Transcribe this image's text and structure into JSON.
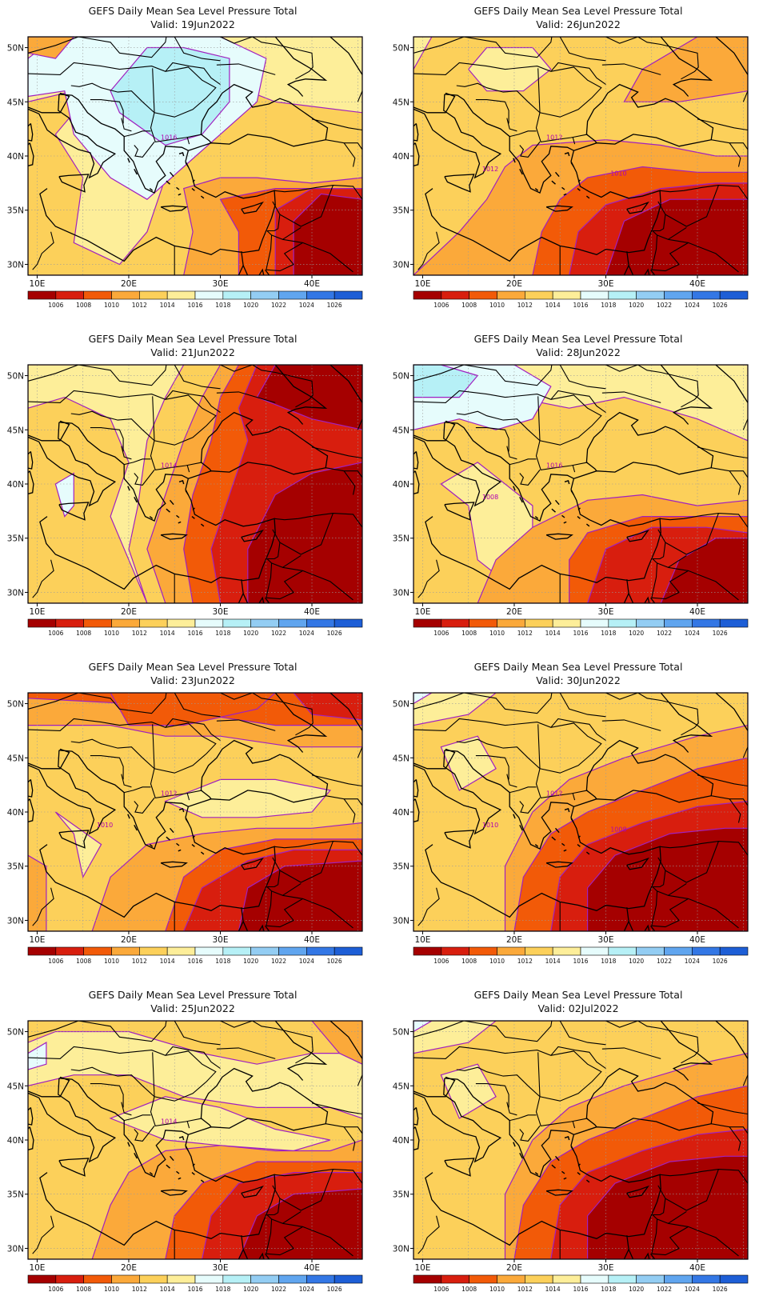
{
  "map_title": "GEFS Daily Mean Sea Level Pressure Total",
  "valid_prefix": "Valid:",
  "lon_ticks": [
    "10E",
    "20E",
    "30E",
    "40E"
  ],
  "lat_ticks": [
    "50N",
    "45N",
    "40N",
    "35N",
    "30N"
  ],
  "colorbar": {
    "labels": [
      "1006",
      "1008",
      "1010",
      "1012",
      "1014",
      "1016",
      "1018",
      "1020",
      "1022",
      "1024",
      "1026"
    ],
    "colors": [
      "#a50000",
      "#d81e0e",
      "#f25a08",
      "#fba93a",
      "#fcd05a",
      "#fdee99",
      "#e6fcfc",
      "#b6f0f6",
      "#93cdf3",
      "#60a5ef",
      "#3377e5",
      "#1d5ed6"
    ]
  },
  "panels": [
    {
      "valid": "19Jun2022",
      "contour_labels": [
        "1016"
      ],
      "pattern": "high_north"
    },
    {
      "valid": "26Jun2022",
      "contour_labels": [
        "1012",
        "1012",
        "1010"
      ],
      "pattern": "hot_south"
    },
    {
      "valid": "21Jun2022",
      "contour_labels": [
        "1014"
      ],
      "pattern": "low_east"
    },
    {
      "valid": "28Jun2022",
      "contour_labels": [
        "1016",
        "1008"
      ],
      "pattern": "high_north_small"
    },
    {
      "valid": "23Jun2022",
      "contour_labels": [
        "1012",
        "1010"
      ],
      "pattern": "low_north"
    },
    {
      "valid": "30Jun2022",
      "contour_labels": [
        "1012",
        "1010",
        "1008"
      ],
      "pattern": "hot_band"
    },
    {
      "valid": "25Jun2022",
      "contour_labels": [
        "1014"
      ],
      "pattern": "mild"
    },
    {
      "valid": "02Jul2022",
      "contour_labels": [],
      "pattern": "hot_band"
    }
  ]
}
